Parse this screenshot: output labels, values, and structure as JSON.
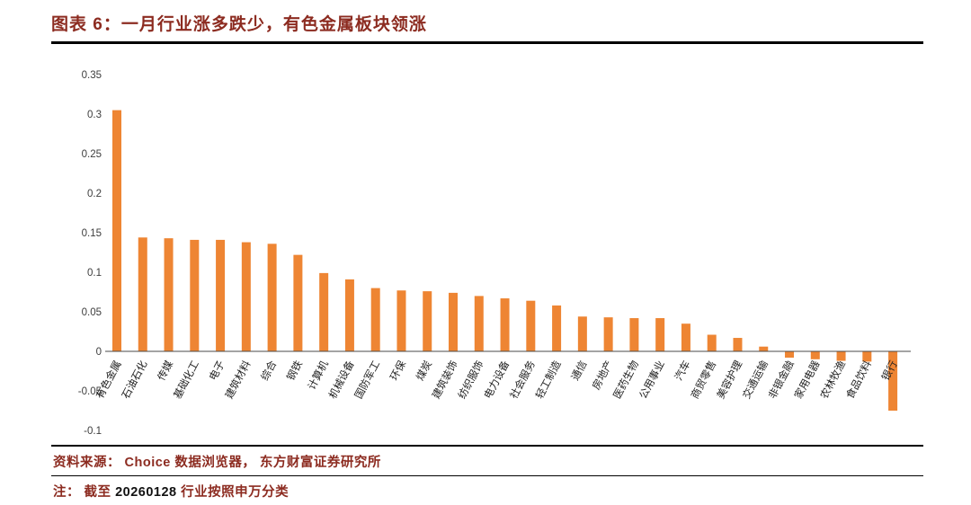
{
  "header": {
    "title": "图表 6：一月行业涨多跌少，有色金属板块领涨"
  },
  "chart_data": {
    "type": "bar",
    "title": "图表 6：一月行业涨多跌少，有色金属板块领涨",
    "categories": [
      "有色金属",
      "石油石化",
      "传媒",
      "基础化工",
      "电子",
      "建筑材料",
      "综合",
      "钢铁",
      "计算机",
      "机械设备",
      "国防军工",
      "环保",
      "煤炭",
      "建筑装饰",
      "纺织服饰",
      "电力设备",
      "社会服务",
      "轻工制造",
      "通信",
      "房地产",
      "医药生物",
      "公用事业",
      "汽车",
      "商贸零售",
      "美容护理",
      "交通运输",
      "非银金融",
      "家用电器",
      "农林牧渔",
      "食品饮料",
      "银行"
    ],
    "values": [
      0.305,
      0.144,
      0.143,
      0.141,
      0.141,
      0.138,
      0.136,
      0.122,
      0.099,
      0.091,
      0.08,
      0.077,
      0.076,
      0.074,
      0.07,
      0.067,
      0.064,
      0.058,
      0.044,
      0.043,
      0.042,
      0.042,
      0.035,
      0.021,
      0.017,
      0.006,
      -0.008,
      -0.01,
      -0.012,
      -0.013,
      -0.075
    ],
    "xlabel": "",
    "ylabel": "",
    "ylim": [
      -0.1,
      0.35
    ],
    "yticks": [
      0.35,
      0.3,
      0.25,
      0.2,
      0.15,
      0.1,
      0.05,
      0,
      -0.05,
      -0.1
    ],
    "ytick_labels": [
      "0.35",
      "0.3",
      "0.25",
      "0.2",
      "0.15",
      "0.1",
      "0.05",
      "0",
      "-0.05",
      "-0.1"
    ],
    "bar_color": "#EE8533",
    "grid": false,
    "legend": "none"
  },
  "footer": {
    "source": "资料来源： Choice 数据浏览器， 东方财富证券研究所",
    "note_prefix": "注： 截至 ",
    "note_number": "20260128",
    "note_suffix": " 行业按照申万分类"
  },
  "colors": {
    "bar": "#EE8533",
    "accent_text": "#8C2B20",
    "axis_line": "#4a4a4a",
    "rule": "#000000"
  }
}
